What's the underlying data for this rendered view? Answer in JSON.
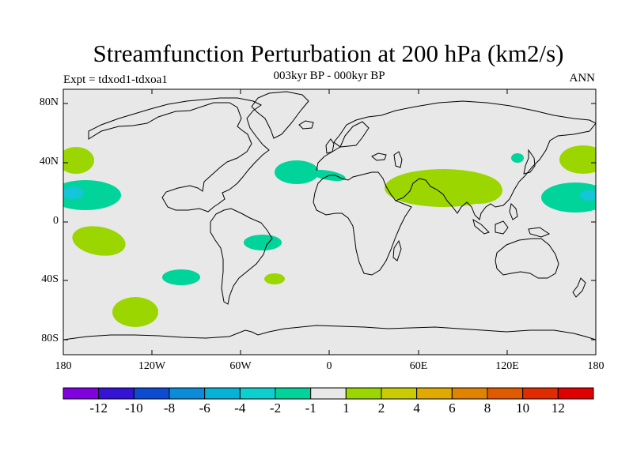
{
  "title": "Streamfunction Perturbation at 200 hPa (km2/s)",
  "subtitle": "003kyr BP - 000kyr BP",
  "left_label": "Expt = tdxod1-tdxoa1",
  "right_label": "ANN",
  "lat_labels": [
    "80N",
    "40N",
    "0",
    "40S",
    "80S"
  ],
  "lon_labels": [
    "180",
    "120W",
    "60W",
    "0",
    "60E",
    "120E",
    "180"
  ],
  "colors": {
    "ocean": "#e8e8e8",
    "coast": "#000000",
    "cyan_level": "#00d49a",
    "light_cyan": "#13c6d8",
    "green_level": "#9bd600"
  },
  "colorbar": {
    "colors": [
      "#8000e0",
      "#3412d6",
      "#0f4bd2",
      "#0a8cd8",
      "#06b2d6",
      "#0ccfce",
      "#00d49a",
      "#e8e8e8",
      "#9bd600",
      "#c8cc00",
      "#e0aa00",
      "#e08400",
      "#e05a00",
      "#e02c00",
      "#e00000"
    ],
    "labels": [
      "-12",
      "-10",
      "-8",
      "-6",
      "-4",
      "-2",
      "-1",
      "1",
      "2",
      "4",
      "6",
      "8",
      "10",
      "12"
    ]
  },
  "anomalies": [
    {
      "id": "north-pacific-west",
      "sign": "positive",
      "lon": -174,
      "lat": 40
    },
    {
      "id": "north-pacific-east",
      "sign": "positive",
      "lon": 172,
      "lat": 40
    },
    {
      "id": "subtropical-pacific-west",
      "sign": "negative",
      "lon": -170,
      "lat": 17
    },
    {
      "id": "subtropical-pacific-east",
      "sign": "negative",
      "lon": 168,
      "lat": 17
    },
    {
      "id": "central-pacific-south",
      "sign": "positive",
      "lon": -150,
      "lat": -12
    },
    {
      "id": "north-atlantic",
      "sign": "negative",
      "lon": -25,
      "lat": 33
    },
    {
      "id": "asia-monsoon",
      "sign": "positive",
      "lon": 70,
      "lat": 22
    },
    {
      "id": "korea",
      "sign": "negative",
      "lon": 128,
      "lat": 39
    },
    {
      "id": "south-atlantic",
      "sign": "negative",
      "lon": -40,
      "lat": -13
    },
    {
      "id": "south-pacific",
      "sign": "negative",
      "lon": -100,
      "lat": -37
    },
    {
      "id": "south-atlantic-small",
      "sign": "positive",
      "lon": -36,
      "lat": -39
    },
    {
      "id": "southern-ocean",
      "sign": "positive",
      "lon": -144,
      "lat": -60
    }
  ]
}
